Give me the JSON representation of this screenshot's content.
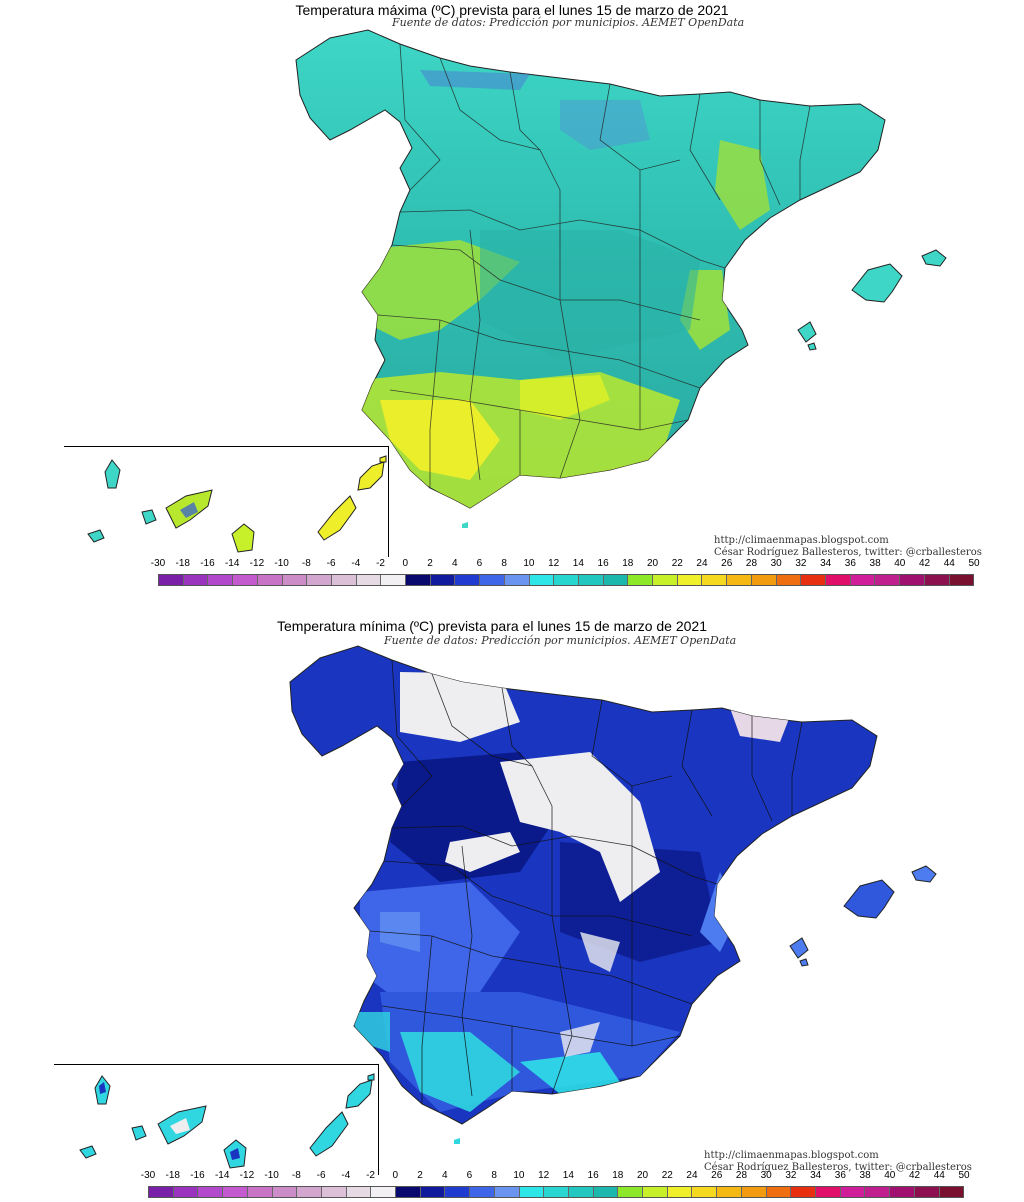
{
  "maps": [
    {
      "title": "Temperatura máxima (ºC) prevista para el lunes 15 de marzo de 2021",
      "source": "Fuente de datos: Predicción por municipios. AEMET OpenData",
      "credit_url": "http://climaenmapas.blogspot.com",
      "credit_author": "César Rodríguez Ballesteros, twitter: @crballesteros",
      "regions": [
        "Península Ibérica",
        "Islas Baleares",
        "Islas Canarias"
      ]
    },
    {
      "title": "Temperatura mínima (ºC) prevista para el lunes 15 de marzo de 2021",
      "source": "Fuente de datos: Predicción por municipios. AEMET OpenData",
      "credit_url": "http://climaenmapas.blogspot.com",
      "credit_author": "César Rodríguez Ballesteros, twitter: @crballesteros",
      "regions": [
        "Península Ibérica",
        "Islas Baleares",
        "Islas Canarias"
      ]
    }
  ],
  "scale": {
    "labels": [
      "-30",
      "-18",
      "-16",
      "-14",
      "-12",
      "-10",
      "-8",
      "-6",
      "-4",
      "-2",
      "0",
      "2",
      "4",
      "6",
      "8",
      "10",
      "12",
      "14",
      "16",
      "18",
      "20",
      "22",
      "24",
      "26",
      "28",
      "30",
      "32",
      "34",
      "36",
      "38",
      "40",
      "42",
      "44",
      "50"
    ],
    "colors": [
      "#7a1fa8",
      "#9a34bf",
      "#b248cc",
      "#c35bcf",
      "#c873c5",
      "#cc8cc8",
      "#d3a6cf",
      "#dcc0d8",
      "#e6dbe4",
      "#f2f0f2",
      "#0a0a6e",
      "#101a9c",
      "#1f3bd0",
      "#3f66e8",
      "#6b93f0",
      "#2ee6e8",
      "#28d6d0",
      "#22c8c0",
      "#1cb8ae",
      "#8ee82a",
      "#c8f02a",
      "#f0f02a",
      "#f5d820",
      "#f5b814",
      "#f29a10",
      "#ee6e10",
      "#e83010",
      "#e0106a",
      "#d01e9a",
      "#c0208e",
      "#a0106e",
      "#8c1050",
      "#7a1030"
    ]
  },
  "colors": {
    "max_cool": "#3dd3c3",
    "max_mid": "#2eb3a8",
    "max_warm_green": "#9fe03a",
    "max_warm_yellow": "#e8ee2a",
    "min_deep": "#0b1a8a",
    "min_blue": "#2f58d8",
    "min_light": "#4d7cf0",
    "min_cyan": "#30d7e0",
    "min_cold": "#eeeef0",
    "border": "#222222"
  }
}
